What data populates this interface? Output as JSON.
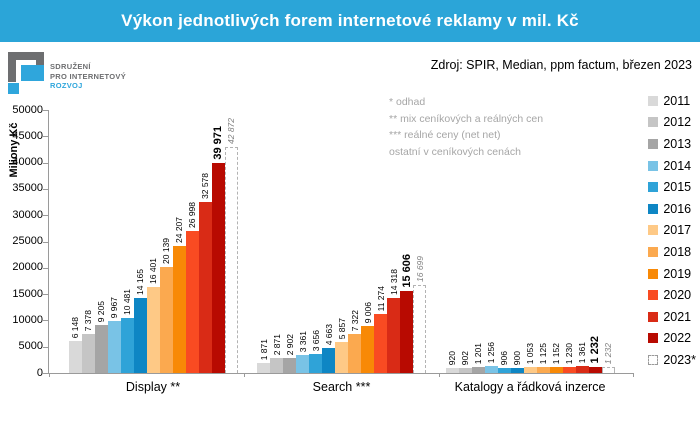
{
  "header": {
    "title": "Výkon jednotlivých forem internetové reklamy v mil. Kč",
    "bg_color": "#2BA5D8"
  },
  "logo": {
    "line1": "SDRUŽENÍ",
    "line2": "PRO INTERNETOVÝ",
    "line3": "ROZVOJ"
  },
  "source": "Zdroj: SPIR, Median, ppm factum, březen 2023",
  "notes": [
    "* odhad",
    "** mix ceníkových a reálných cen",
    "*** reálné ceny (net net)",
    "ostatní v ceníkových cenách"
  ],
  "chart_data": {
    "type": "bar",
    "title": "Výkon jednotlivých forem internetové reklamy v mil. Kč",
    "ylabel": "Miliony Kč",
    "ylim": [
      0,
      50000
    ],
    "ytick_step": 5000,
    "grid": false,
    "legend_position": "right",
    "categories": [
      "Display **",
      "Search ***",
      "Katalogy a řádková inzerce"
    ],
    "series": [
      {
        "name": "2011",
        "color": "#D9D9D9",
        "values": [
          6148,
          1871,
          920
        ]
      },
      {
        "name": "2012",
        "color": "#C5C5C5",
        "values": [
          7378,
          2871,
          902
        ]
      },
      {
        "name": "2013",
        "color": "#A5A5A5",
        "values": [
          9205,
          2902,
          1201
        ]
      },
      {
        "name": "2014",
        "color": "#79C3E6",
        "values": [
          9967,
          3361,
          1256
        ]
      },
      {
        "name": "2015",
        "color": "#2FA3D8",
        "values": [
          10481,
          3656,
          906
        ]
      },
      {
        "name": "2016",
        "color": "#0E86C4",
        "values": [
          14165,
          4663,
          900
        ]
      },
      {
        "name": "2017",
        "color": "#FEC986",
        "values": [
          16401,
          5857,
          1053
        ]
      },
      {
        "name": "2018",
        "color": "#FBA94F",
        "values": [
          20139,
          7322,
          1125
        ]
      },
      {
        "name": "2019",
        "color": "#F88906",
        "values": [
          24207,
          9006,
          1152
        ]
      },
      {
        "name": "2020",
        "color": "#F94B22",
        "values": [
          26998,
          11274,
          1230
        ]
      },
      {
        "name": "2021",
        "color": "#D92B16",
        "values": [
          32578,
          14318,
          1361
        ]
      },
      {
        "name": "2022",
        "color": "#B80A01",
        "values": [
          39971,
          15606,
          1232
        ],
        "emphasis": "bold"
      },
      {
        "name": "2023*",
        "color": "dashed",
        "values": [
          42872,
          16699,
          1232
        ],
        "style": "estimate"
      }
    ]
  }
}
